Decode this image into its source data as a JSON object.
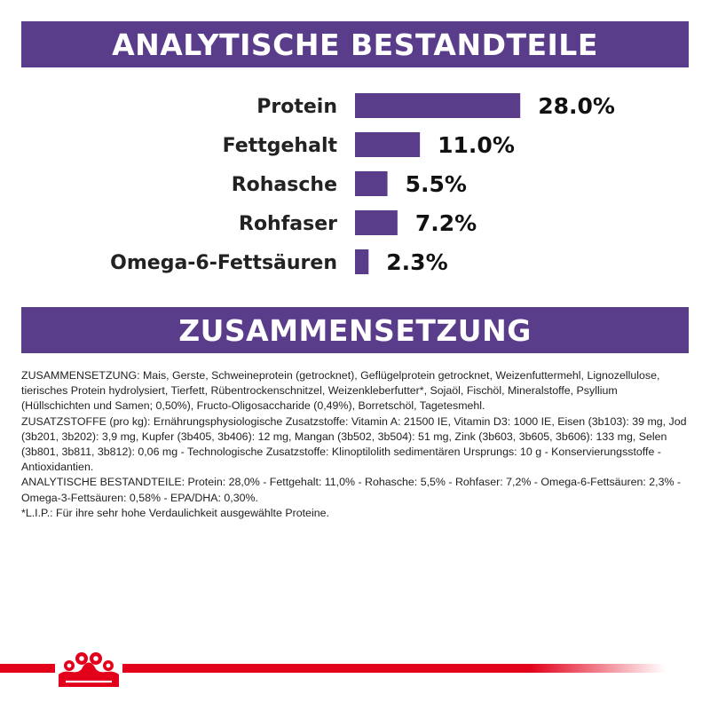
{
  "headers": {
    "analysis": "ANALYTISCHE BESTANDTEILE",
    "composition": "ZUSAMMENSETZUNG"
  },
  "chart_data": {
    "type": "bar",
    "orientation": "horizontal",
    "categories": [
      "Protein",
      "Fettgehalt",
      "Rohasche",
      "Rohfaser",
      "Omega-6-Fettsäuren"
    ],
    "values": [
      28.0,
      11.0,
      5.5,
      7.2,
      2.3
    ],
    "value_labels": [
      "28.0%",
      "11.0%",
      "5.5%",
      "7.2%",
      "2.3%"
    ],
    "unit": "%",
    "bar_color": "#5a3d8a",
    "grid": false
  },
  "composition_text": [
    "ZUSAMMENSETZUNG: Mais, Gerste, Schweineprotein (getrocknet), Geflügelprotein getrocknet, Weizenfuttermehl, Lignozellulose, tierisches Protein hydrolysiert, Tierfett, Rübentrockenschnitzel, Weizenkleberfutter*, Sojaöl, Fischöl, Mineralstoffe, Psyllium (Hüllschichten und Samen; 0,50%), Fructo-Oligosaccharide (0,49%), Borretschöl, Tagetesmehl.",
    "ZUSATZSTOFFE (pro kg): Ernährungsphysiologische Zusatzstoffe: Vitamin A: 21500 IE, Vitamin D3: 1000 IE, Eisen (3b103): 39 mg, Jod (3b201, 3b202): 3,9 mg, Kupfer (3b405, 3b406): 12 mg, Mangan (3b502, 3b504): 51 mg, Zink (3b603, 3b605, 3b606): 133 mg, Selen (3b801, 3b811, 3b812): 0,06 mg - Technologische Zusatzstoffe: Klinoptilolith sedimentären Ursprungs: 10 g - Konservierungsstoffe - Antioxidantien.",
    "ANALYTISCHE BESTANDTEILE: Protein: 28,0% - Fettgehalt: 11,0% - Rohasche: 5,5% - Rohfaser: 7,2% - Omega-6-Fettsäuren: 2,3% - Omega-3-Fettsäuren: 0,58% - EPA/DHA: 0,30%.",
    "*L.I.P.: Für ihre sehr hohe Verdaulichkeit ausgewählte Proteine."
  ],
  "colors": {
    "brand_purple": "#5a3d8a",
    "brand_red": "#e2001a"
  },
  "icons": {
    "logo": "crown-icon"
  }
}
